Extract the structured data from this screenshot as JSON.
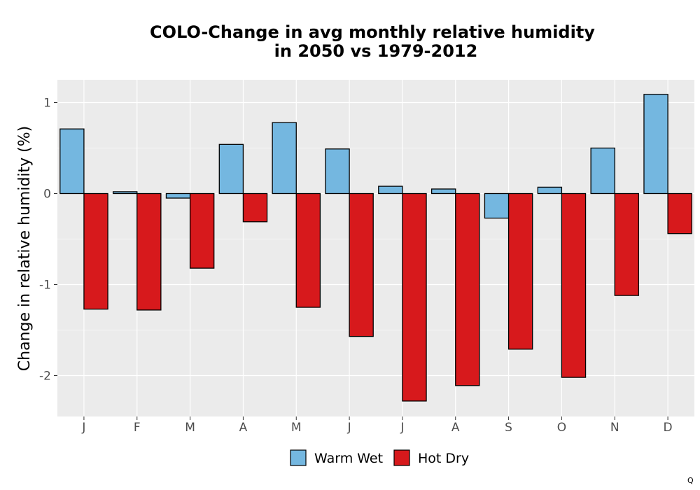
{
  "chart_data": {
    "type": "bar",
    "title": [
      "COLO-Change in avg monthly relative humidity",
      "in 2050 vs 1979-2012"
    ],
    "xlabel": "",
    "ylabel": "Change in relative humidity (%)",
    "categories": [
      "J",
      "F",
      "M",
      "A",
      "M",
      "J",
      "J",
      "A",
      "S",
      "O",
      "N",
      "D"
    ],
    "series": [
      {
        "name": "Warm Wet",
        "color": "#74b7e0",
        "values": [
          0.71,
          0.02,
          -0.05,
          0.54,
          0.78,
          0.49,
          0.08,
          0.05,
          -0.27,
          0.07,
          0.5,
          1.09
        ]
      },
      {
        "name": "Hot Dry",
        "color": "#d7191c",
        "values": [
          -1.27,
          -1.28,
          -0.82,
          -0.31,
          -1.25,
          -1.57,
          -2.28,
          -2.11,
          -1.71,
          -2.02,
          -1.12,
          -0.44
        ]
      }
    ],
    "ylim": [
      -2.45,
      1.25
    ],
    "yticks": [
      1,
      0,
      -1,
      -2
    ],
    "ytick_labels": [
      "1",
      "0",
      "-1",
      "-2"
    ],
    "grid": true,
    "legend_position": "bottom"
  },
  "corner_mark": "Q"
}
